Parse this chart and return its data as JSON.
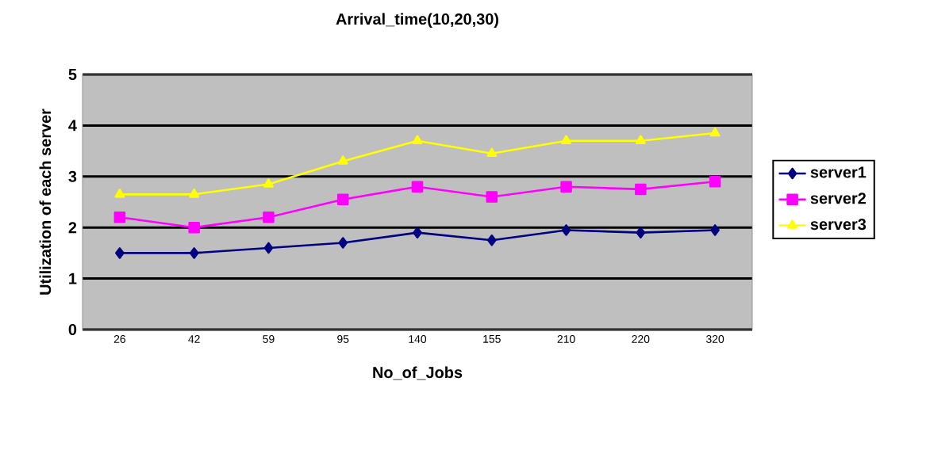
{
  "chart_data": {
    "type": "line",
    "title": "Arrival_time(10,20,30)",
    "xlabel": "No_of_Jobs",
    "ylabel": "Utilization of each server",
    "categories": [
      "26",
      "42",
      "59",
      "95",
      "140",
      "155",
      "210",
      "220",
      "320"
    ],
    "series": [
      {
        "name": "server1",
        "color": "#000080",
        "marker": "diamond",
        "values": [
          1.5,
          1.5,
          1.6,
          1.7,
          1.9,
          1.75,
          1.95,
          1.9,
          1.95
        ]
      },
      {
        "name": "server2",
        "color": "#ff00ff",
        "marker": "square",
        "values": [
          2.2,
          2.0,
          2.2,
          2.55,
          2.8,
          2.6,
          2.8,
          2.75,
          2.9
        ]
      },
      {
        "name": "server3",
        "color": "#ffff00",
        "marker": "triangle",
        "values": [
          2.65,
          2.65,
          2.85,
          3.3,
          3.7,
          3.45,
          3.7,
          3.7,
          3.85
        ]
      }
    ],
    "ylim": [
      0,
      5
    ],
    "yticks": [
      0,
      1,
      2,
      3,
      4,
      5
    ],
    "grid": "y",
    "legend": "right"
  }
}
